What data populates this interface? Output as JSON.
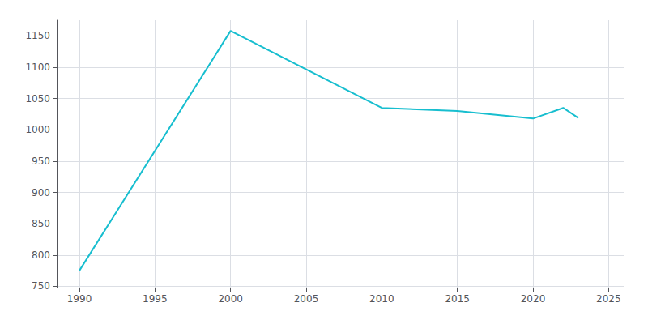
{
  "chart_data": {
    "type": "line",
    "x": [
      1990,
      2000,
      2010,
      2015,
      2020,
      2022,
      2023
    ],
    "values": [
      775,
      1158,
      1035,
      1030,
      1018,
      1035,
      1019
    ],
    "color": "#17BECF",
    "xlim": [
      1988.5,
      2026
    ],
    "ylim": [
      748,
      1175
    ],
    "xticks": [
      1990,
      1995,
      2000,
      2005,
      2010,
      2015,
      2020,
      2025
    ],
    "yticks": [
      750,
      800,
      850,
      900,
      950,
      1000,
      1050,
      1100,
      1150
    ],
    "grid": true
  }
}
